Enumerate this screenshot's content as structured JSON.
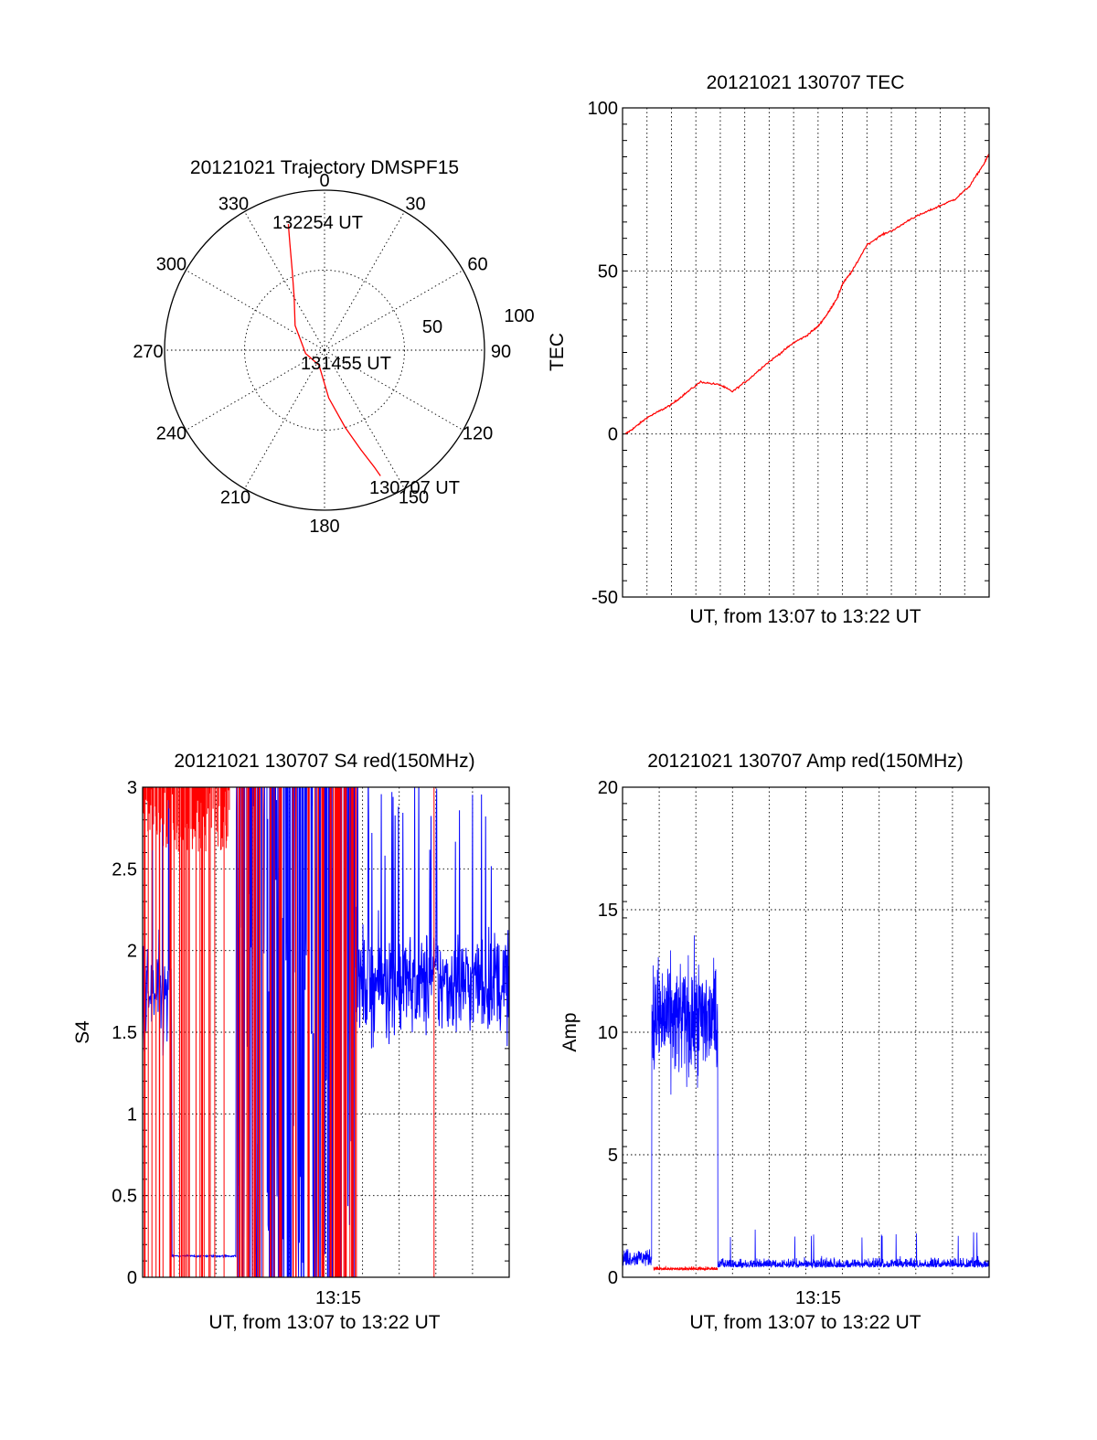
{
  "chart_data": [
    {
      "type": "polar",
      "title": "20121021 Trajectory DMSPF15",
      "angle_labels": [
        "0",
        "30",
        "60",
        "90",
        "120",
        "150",
        "180",
        "210",
        "240",
        "270",
        "300",
        "330"
      ],
      "radial_labels": [
        "50",
        "100"
      ],
      "radius_range": [
        0,
        100
      ],
      "grid": true,
      "series": [
        {
          "color": "#ff0000",
          "points_az_r": [
            [
              344,
              82
            ],
            [
              342,
              70
            ],
            [
              338,
              54
            ],
            [
              330,
              38
            ],
            [
              310,
              24
            ],
            [
              260,
              12
            ],
            [
              200,
              10
            ],
            [
              175,
              30
            ],
            [
              165,
              50
            ],
            [
              160,
              66
            ],
            [
              157,
              79
            ],
            [
              156,
              86
            ]
          ]
        }
      ],
      "annotations": [
        {
          "text": "132254 UT",
          "az": 347,
          "r": 81
        },
        {
          "text": "131455 UT",
          "az": 115,
          "r": 19
        },
        {
          "text": "130707 UT",
          "az": 150,
          "r": 95
        }
      ]
    },
    {
      "type": "line",
      "title": "20121021 130707 TEC",
      "xlabel": "UT, from 13:07 to 13:22 UT",
      "ylabel": "TEC",
      "xlim": [
        "13:07",
        "13:22"
      ],
      "ylim": [
        -50,
        100
      ],
      "yticks": [
        "-50",
        "0",
        "50",
        "100"
      ],
      "grid": true,
      "series": [
        {
          "color": "#ff0000",
          "x_minutes_ut": [
            13.12,
            13.5,
            14.0,
            14.5,
            15.0,
            15.5,
            16.2,
            17.0,
            17.5,
            18.2,
            18.8,
            19.5,
            20.0,
            20.5,
            21.0,
            21.4,
            21.8,
            22.0,
            22.4,
            23.0,
            23.6,
            24.2,
            24.8,
            25.4,
            26.0,
            26.6,
            27.2,
            27.8,
            28.0
          ],
          "values": [
            0,
            2,
            5,
            7,
            9,
            12,
            16,
            15,
            13,
            17,
            21,
            25,
            28,
            30,
            33,
            37,
            42,
            46,
            50,
            58,
            61,
            63,
            66,
            68,
            70,
            72,
            76,
            83,
            86
          ]
        }
      ]
    },
    {
      "type": "line",
      "title": "20121021 130707 S4 red(150MHz)",
      "xlabel": "UT, from 13:07 to 13:22 UT",
      "ylabel": "S4",
      "xlim": [
        "13:07",
        "13:22"
      ],
      "ylim": [
        0,
        3
      ],
      "yticks": [
        "0",
        "0.5",
        "1",
        "1.5",
        "2",
        "2.5",
        "3"
      ],
      "xtick_label": "13:15",
      "grid": true,
      "series": [
        {
          "color": "#0000ff",
          "noise": "S4 blue: ~1.7 mean 13:07-13:08, ~0.13 from 13:08-13:11, saturated 3 from 13:11-13:17, ~1.8 mean 13:17-13:22"
        },
        {
          "color": "#ff0000",
          "noise": "S4 red: near 3 during 13:07-13:10 and spikes 13:11-13:16, sparse spikes after"
        }
      ]
    },
    {
      "type": "line",
      "title": "20121021 130707 Amp red(150MHz)",
      "xlabel": "UT, from 13:07 to 13:22 UT",
      "ylabel": "Amp",
      "xlim": [
        "13:07",
        "13:22"
      ],
      "ylim": [
        0,
        20
      ],
      "yticks": [
        "0",
        "5",
        "10",
        "15",
        "20"
      ],
      "xtick_label": "13:15",
      "grid": true,
      "series": [
        {
          "color": "#0000ff",
          "noise": "Amp blue: ~0.8 for 13:07-13:08, ~10.5 +/-3 for 13:08:15-13:10:40, ~0.5 after"
        },
        {
          "color": "#ff0000",
          "noise": "Amp red: ~0.3 for 13:08:15-13:10:40, ~0.3 scattered after"
        }
      ]
    }
  ]
}
